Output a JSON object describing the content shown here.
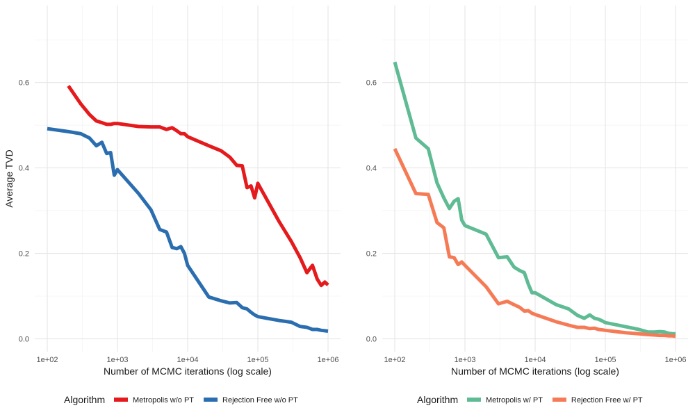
{
  "chart_data": [
    {
      "type": "line",
      "xscale": "log10",
      "xlim": [
        100,
        1000000
      ],
      "ylim": [
        -0.03,
        0.78
      ],
      "xticks": [
        100,
        1000,
        10000,
        100000,
        1000000
      ],
      "xtick_labels": [
        "1e+02",
        "1e+03",
        "1e+04",
        "1e+05",
        "1e+06"
      ],
      "yticks": [
        0.0,
        0.2,
        0.4,
        0.6
      ],
      "ytick_labels": [
        "0.0",
        "0.2",
        "0.4",
        "0.6"
      ],
      "xlabel": "Number of MCMC iterations (log scale)",
      "ylabel": "Average TVD",
      "legend_title": "Algorithm",
      "legend_position": "bottom",
      "series": [
        {
          "name": "Metropolis w/o PT",
          "color": "#e41a1c",
          "x": [
            200,
            300,
            400,
            500,
            600,
            700,
            800,
            900,
            1000,
            2000,
            3000,
            4000,
            5000,
            6000,
            7000,
            8000,
            9000,
            10000,
            20000,
            30000,
            40000,
            50000,
            60000,
            70000,
            80000,
            90000,
            100000,
            200000,
            300000,
            400000,
            500000,
            600000,
            700000,
            800000,
            900000,
            1000000
          ],
          "y": [
            0.592,
            0.55,
            0.525,
            0.51,
            0.506,
            0.502,
            0.502,
            0.504,
            0.504,
            0.497,
            0.496,
            0.496,
            0.49,
            0.494,
            0.487,
            0.48,
            0.48,
            0.473,
            0.452,
            0.44,
            0.425,
            0.406,
            0.405,
            0.354,
            0.358,
            0.33,
            0.364,
            0.275,
            0.228,
            0.19,
            0.155,
            0.172,
            0.14,
            0.125,
            0.133,
            0.126
          ]
        },
        {
          "name": "Rejection Free w/o PT",
          "color": "#2b6eb0",
          "x": [
            100,
            200,
            300,
            400,
            500,
            600,
            700,
            800,
            900,
            1000,
            2000,
            3000,
            4000,
            5000,
            6000,
            7000,
            8000,
            9000,
            10000,
            20000,
            30000,
            40000,
            50000,
            60000,
            70000,
            80000,
            90000,
            100000,
            200000,
            300000,
            400000,
            500000,
            600000,
            700000,
            800000,
            900000,
            1000000
          ],
          "y": [
            0.492,
            0.485,
            0.48,
            0.47,
            0.452,
            0.46,
            0.434,
            0.436,
            0.383,
            0.396,
            0.34,
            0.302,
            0.256,
            0.25,
            0.214,
            0.211,
            0.216,
            0.2,
            0.172,
            0.098,
            0.089,
            0.084,
            0.085,
            0.073,
            0.07,
            0.062,
            0.056,
            0.052,
            0.043,
            0.039,
            0.029,
            0.027,
            0.022,
            0.022,
            0.02,
            0.019,
            0.018
          ]
        }
      ]
    },
    {
      "type": "line",
      "xscale": "log10",
      "xlim": [
        100,
        1000000
      ],
      "ylim": [
        -0.03,
        0.78
      ],
      "xticks": [
        100,
        1000,
        10000,
        100000,
        1000000
      ],
      "xtick_labels": [
        "1e+02",
        "1e+03",
        "1e+04",
        "1e+05",
        "1e+06"
      ],
      "yticks": [
        0.0,
        0.2,
        0.4,
        0.6
      ],
      "ytick_labels": [
        "0.0",
        "0.2",
        "0.4",
        "0.6"
      ],
      "xlabel": "Number of MCMC iterations (log scale)",
      "ylabel": "",
      "legend_title": "Algorithm",
      "legend_position": "bottom",
      "series": [
        {
          "name": "Metropolis w/ PT",
          "color": "#5fbb93",
          "x": [
            100,
            200,
            300,
            400,
            500,
            600,
            700,
            800,
            900,
            1000,
            2000,
            3000,
            4000,
            5000,
            6000,
            7000,
            8000,
            9000,
            10000,
            20000,
            30000,
            40000,
            50000,
            60000,
            70000,
            80000,
            90000,
            100000,
            200000,
            300000,
            400000,
            500000,
            600000,
            700000,
            800000,
            900000,
            1000000
          ],
          "y": [
            0.648,
            0.47,
            0.445,
            0.365,
            0.33,
            0.305,
            0.322,
            0.328,
            0.278,
            0.265,
            0.245,
            0.19,
            0.192,
            0.168,
            0.16,
            0.155,
            0.128,
            0.108,
            0.108,
            0.08,
            0.07,
            0.055,
            0.048,
            0.056,
            0.048,
            0.046,
            0.042,
            0.038,
            0.028,
            0.022,
            0.016,
            0.016,
            0.017,
            0.016,
            0.013,
            0.012,
            0.012
          ]
        },
        {
          "name": "Rejection Free w/ PT",
          "color": "#f57b56",
          "x": [
            100,
            200,
            300,
            400,
            500,
            600,
            700,
            800,
            900,
            1000,
            2000,
            3000,
            4000,
            5000,
            6000,
            7000,
            8000,
            9000,
            10000,
            20000,
            30000,
            40000,
            50000,
            60000,
            70000,
            80000,
            90000,
            100000,
            200000,
            300000,
            400000,
            500000,
            600000,
            700000,
            800000,
            900000,
            1000000
          ],
          "y": [
            0.445,
            0.34,
            0.338,
            0.272,
            0.26,
            0.192,
            0.19,
            0.174,
            0.18,
            0.172,
            0.122,
            0.082,
            0.088,
            0.08,
            0.074,
            0.065,
            0.066,
            0.06,
            0.057,
            0.04,
            0.032,
            0.027,
            0.027,
            0.024,
            0.025,
            0.022,
            0.021,
            0.02,
            0.014,
            0.012,
            0.01,
            0.009,
            0.008,
            0.008,
            0.007,
            0.007,
            0.006
          ]
        }
      ]
    }
  ]
}
